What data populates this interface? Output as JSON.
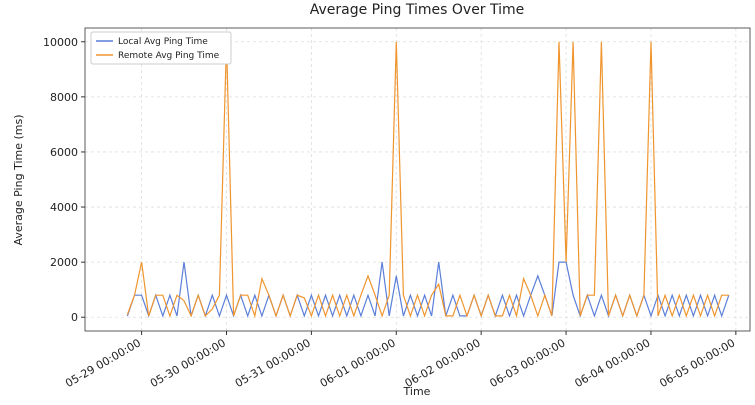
{
  "chart_data": {
    "type": "line",
    "title": "Average Ping Times Over Time",
    "x_label": "Time",
    "y_label": "Average Ping Time (ms)",
    "x": [
      "05-28 20:00:00",
      "05-28 22:00:00",
      "05-29 00:00:00",
      "05-29 02:00:00",
      "05-29 04:00:00",
      "05-29 06:00:00",
      "05-29 08:00:00",
      "05-29 10:00:00",
      "05-29 12:00:00",
      "05-29 14:00:00",
      "05-29 16:00:00",
      "05-29 18:00:00",
      "05-29 20:00:00",
      "05-29 22:00:00",
      "05-30 00:00:00",
      "05-30 02:00:00",
      "05-30 04:00:00",
      "05-30 06:00:00",
      "05-30 08:00:00",
      "05-30 10:00:00",
      "05-30 12:00:00",
      "05-30 14:00:00",
      "05-30 16:00:00",
      "05-30 18:00:00",
      "05-30 20:00:00",
      "05-30 22:00:00",
      "05-31 00:00:00",
      "05-31 02:00:00",
      "05-31 04:00:00",
      "05-31 06:00:00",
      "05-31 08:00:00",
      "05-31 10:00:00",
      "05-31 12:00:00",
      "05-31 14:00:00",
      "05-31 16:00:00",
      "05-31 18:00:00",
      "05-31 20:00:00",
      "05-31 22:00:00",
      "06-01 00:00:00",
      "06-01 02:00:00",
      "06-01 04:00:00",
      "06-01 06:00:00",
      "06-01 08:00:00",
      "06-01 10:00:00",
      "06-01 12:00:00",
      "06-01 14:00:00",
      "06-01 16:00:00",
      "06-01 18:00:00",
      "06-01 20:00:00",
      "06-01 22:00:00",
      "06-02 00:00:00",
      "06-02 02:00:00",
      "06-02 04:00:00",
      "06-02 06:00:00",
      "06-02 08:00:00",
      "06-02 10:00:00",
      "06-02 12:00:00",
      "06-02 14:00:00",
      "06-02 16:00:00",
      "06-02 18:00:00",
      "06-02 20:00:00",
      "06-02 22:00:00",
      "06-03 00:00:00",
      "06-03 02:00:00",
      "06-03 04:00:00",
      "06-03 06:00:00",
      "06-03 08:00:00",
      "06-03 10:00:00",
      "06-03 12:00:00",
      "06-03 14:00:00",
      "06-03 16:00:00",
      "06-03 18:00:00",
      "06-03 20:00:00",
      "06-03 22:00:00",
      "06-04 00:00:00",
      "06-04 02:00:00",
      "06-04 04:00:00",
      "06-04 06:00:00",
      "06-04 08:00:00",
      "06-04 10:00:00",
      "06-04 12:00:00",
      "06-04 14:00:00",
      "06-04 16:00:00",
      "06-04 18:00:00",
      "06-04 20:00:00",
      "06-04 22:00:00"
    ],
    "series": [
      {
        "name": "Local Avg Ping Time",
        "color": "#5b7fd9",
        "values": [
          50,
          800,
          800,
          50,
          800,
          50,
          800,
          50,
          2000,
          50,
          800,
          50,
          800,
          50,
          800,
          50,
          800,
          50,
          800,
          50,
          800,
          50,
          800,
          50,
          800,
          50,
          800,
          50,
          800,
          50,
          800,
          50,
          800,
          50,
          800,
          50,
          2000,
          50,
          1500,
          50,
          800,
          50,
          800,
          50,
          2000,
          50,
          800,
          50,
          50,
          800,
          50,
          800,
          50,
          800,
          50,
          800,
          50,
          800,
          1500,
          800,
          50,
          2000,
          2000,
          800,
          50,
          800,
          50,
          800,
          50,
          800,
          50,
          800,
          50,
          800,
          50,
          800,
          50,
          800,
          50,
          800,
          50,
          800,
          50,
          800,
          50,
          800
        ]
      },
      {
        "name": "Remote Avg Ping Time",
        "color": "#f0952e",
        "values": [
          100,
          800,
          2000,
          50,
          800,
          800,
          50,
          800,
          600,
          50,
          800,
          50,
          300,
          800,
          10000,
          50,
          800,
          800,
          50,
          1400,
          800,
          50,
          800,
          50,
          800,
          700,
          50,
          800,
          50,
          800,
          50,
          800,
          50,
          800,
          1500,
          800,
          50,
          800,
          10000,
          800,
          50,
          800,
          50,
          800,
          1200,
          50,
          50,
          800,
          50,
          800,
          50,
          800,
          50,
          50,
          800,
          50,
          1400,
          800,
          50,
          800,
          50,
          10000,
          2000,
          10000,
          50,
          800,
          800,
          10000,
          50,
          800,
          50,
          800,
          50,
          800,
          10000,
          50,
          800,
          50,
          800,
          50,
          800,
          50,
          800,
          50,
          800,
          800
        ]
      }
    ],
    "xlim": [
      "05-28 08:00:00",
      "06-05 04:00:00"
    ],
    "xticks": [
      "05-29 00:00:00",
      "05-30 00:00:00",
      "05-31 00:00:00",
      "06-01 00:00:00",
      "06-02 00:00:00",
      "06-03 00:00:00",
      "06-04 00:00:00",
      "06-05 00:00:00"
    ],
    "ylim": [
      -500,
      10500
    ],
    "yticks": [
      0,
      2000,
      4000,
      6000,
      8000,
      10000
    ],
    "grid": true,
    "legend": "upper-left"
  }
}
